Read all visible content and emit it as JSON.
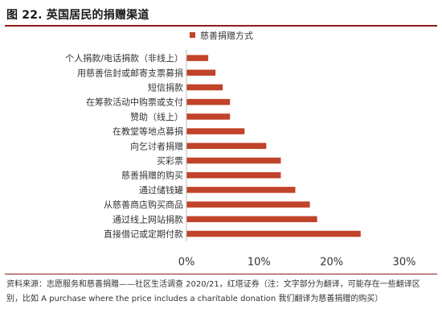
{
  "header": {
    "title": "图 22. 英国居民的捐赠渠道"
  },
  "footer": {
    "source": "资料来源：志愿服务和慈善捐赠——社区生活调查 2020/21，红塔证券（注：文字部分为翻译，可能存在一些翻译区别，比如 A purchase where the price includes a charitable donation 我们翻译为慈善捐赠的购买）"
  },
  "colors": {
    "bar": "#C0432A",
    "rule": "#8a1f1a"
  },
  "chart_data": {
    "type": "bar",
    "orientation": "horizontal",
    "title": "",
    "xlabel": "",
    "ylabel": "",
    "categories": [
      "个人捐款/电话捐款（非线上）",
      "用慈善信封或邮寄支票募捐",
      "短信捐款",
      "在筹款活动中购票或支付",
      "赞助（线上）",
      "在教堂等地点募捐",
      "向乞讨者捐赠",
      "买彩票",
      "慈善捐赠的购买",
      "通过储钱罐",
      "从慈善商店购买商品",
      "通过线上网站捐款",
      "直接借记或定期付款"
    ],
    "series": [
      {
        "name": "慈善捐赠方式",
        "values": [
          3,
          4,
          5,
          6,
          6,
          8,
          11,
          13,
          13,
          15,
          17,
          18,
          24
        ]
      }
    ],
    "xlim": [
      0,
      30
    ],
    "xticks": [
      0,
      10,
      20,
      30
    ],
    "tick_format": "percent",
    "grid": false,
    "legend": "top-center"
  }
}
